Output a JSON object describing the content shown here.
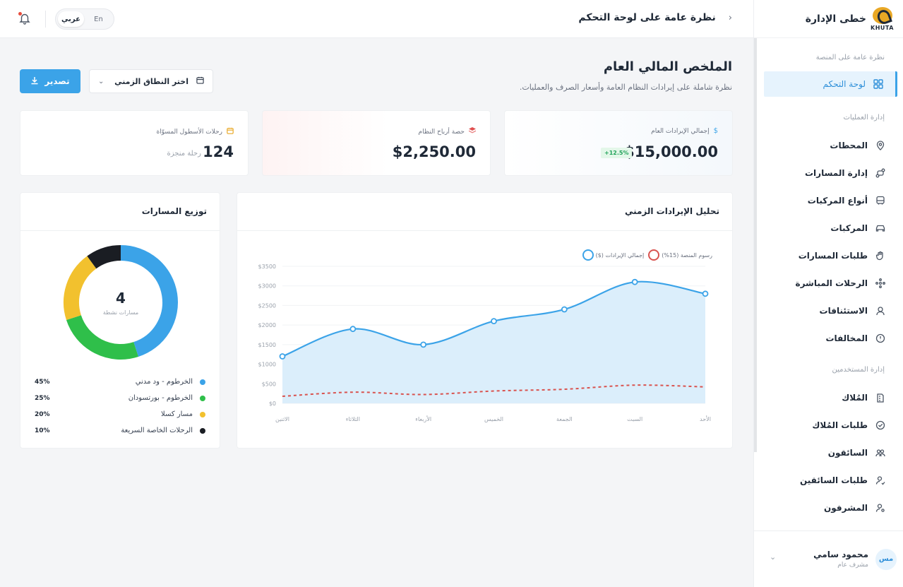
{
  "brand": {
    "title": "خطى الإدارة",
    "logo_text": "KHUTA"
  },
  "topbar": {
    "page_title": "نظرة عامة على لوحة التحكم",
    "lang_en": "En",
    "lang_ar": "عربي"
  },
  "sidebar": {
    "section_platform": "نظرة عامة على المنصة",
    "dashboard": "لوحة التحكم",
    "section_ops": "إدارة العمليات",
    "ops_items": [
      "المحطات",
      "إدارة المسارات",
      "أنواع المركبات",
      "المركبات",
      "طلبات المسارات",
      "الرحلات المباشرة",
      "الاستئنافات",
      "المخالفات"
    ],
    "section_users": "إدارة المستخدمين",
    "user_items": [
      "المُلاك",
      "طلبات المُلاك",
      "السائقون",
      "طلبات السائقين",
      "المشرفون"
    ]
  },
  "user": {
    "name": "محمود سامي",
    "role": "مشرف عام",
    "initials": "مس"
  },
  "header": {
    "title": "الملخص المالي العام",
    "subtitle": "نظرة شاملة على إيرادات النظام العامة وأسعار الصرف والعمليات.",
    "range_placeholder": "اختر النطاق الزمني",
    "export_label": "تصدير"
  },
  "stats": {
    "revenue": {
      "label": "إجمالي الإيرادات العام",
      "value": "$15,000.00",
      "badge": "+12.5%"
    },
    "profit": {
      "label": "حصة أرباح النظام",
      "value": "$2,250.00"
    },
    "trips": {
      "label": "رحلات الأسطول المسوّاة",
      "value": "124",
      "unit": "رحلة منجزة"
    }
  },
  "revenue_panel": {
    "title": "تحليل الإيرادات الزمني"
  },
  "routes_panel": {
    "title": "توزيع المسارات",
    "center_value": "4",
    "center_label": "مسارات نشطة",
    "items": [
      {
        "name": "الخرطوم - ود مدني",
        "pct": "45%",
        "color": "#3ba3e8"
      },
      {
        "name": "الخرطوم - بورتسودان",
        "pct": "25%",
        "color": "#2fbf4a"
      },
      {
        "name": "مسار كسلا",
        "pct": "20%",
        "color": "#f2c12e"
      },
      {
        "name": "الرحلات الخاصة السريعة",
        "pct": "10%",
        "color": "#1a1d23"
      }
    ]
  },
  "chart_data": [
    {
      "type": "area",
      "title": "تحليل الإيرادات الزمني",
      "categories": [
        "الاثنين",
        "الثلاثاء",
        "الأربعاء",
        "الخميس",
        "الجمعة",
        "السبت",
        "الأحد"
      ],
      "y_ticks": [
        "$0",
        "$500",
        "$1000",
        "$1500",
        "$2000",
        "$2500",
        "$3000",
        "$3500"
      ],
      "ylim": [
        0,
        3500
      ],
      "legend_position": "top-right",
      "series": [
        {
          "name": "إجمالي الإيرادات ($)",
          "values": [
            1200,
            1900,
            1500,
            2100,
            2400,
            3100,
            2800
          ],
          "color": "#3ba3e8",
          "style": "solid-area"
        },
        {
          "name": "رسوم المنصة (15%)",
          "values": [
            180,
            285,
            225,
            315,
            360,
            465,
            420
          ],
          "color": "#d9534f",
          "style": "dashed"
        }
      ]
    },
    {
      "type": "pie",
      "title": "توزيع المسارات",
      "categories": [
        "الخرطوم - ود مدني",
        "الخرطوم - بورتسودان",
        "مسار كسلا",
        "الرحلات الخاصة السريعة"
      ],
      "values": [
        45,
        25,
        20,
        10
      ],
      "colors": [
        "#3ba3e8",
        "#2fbf4a",
        "#f2c12e",
        "#1a1d23"
      ]
    }
  ]
}
